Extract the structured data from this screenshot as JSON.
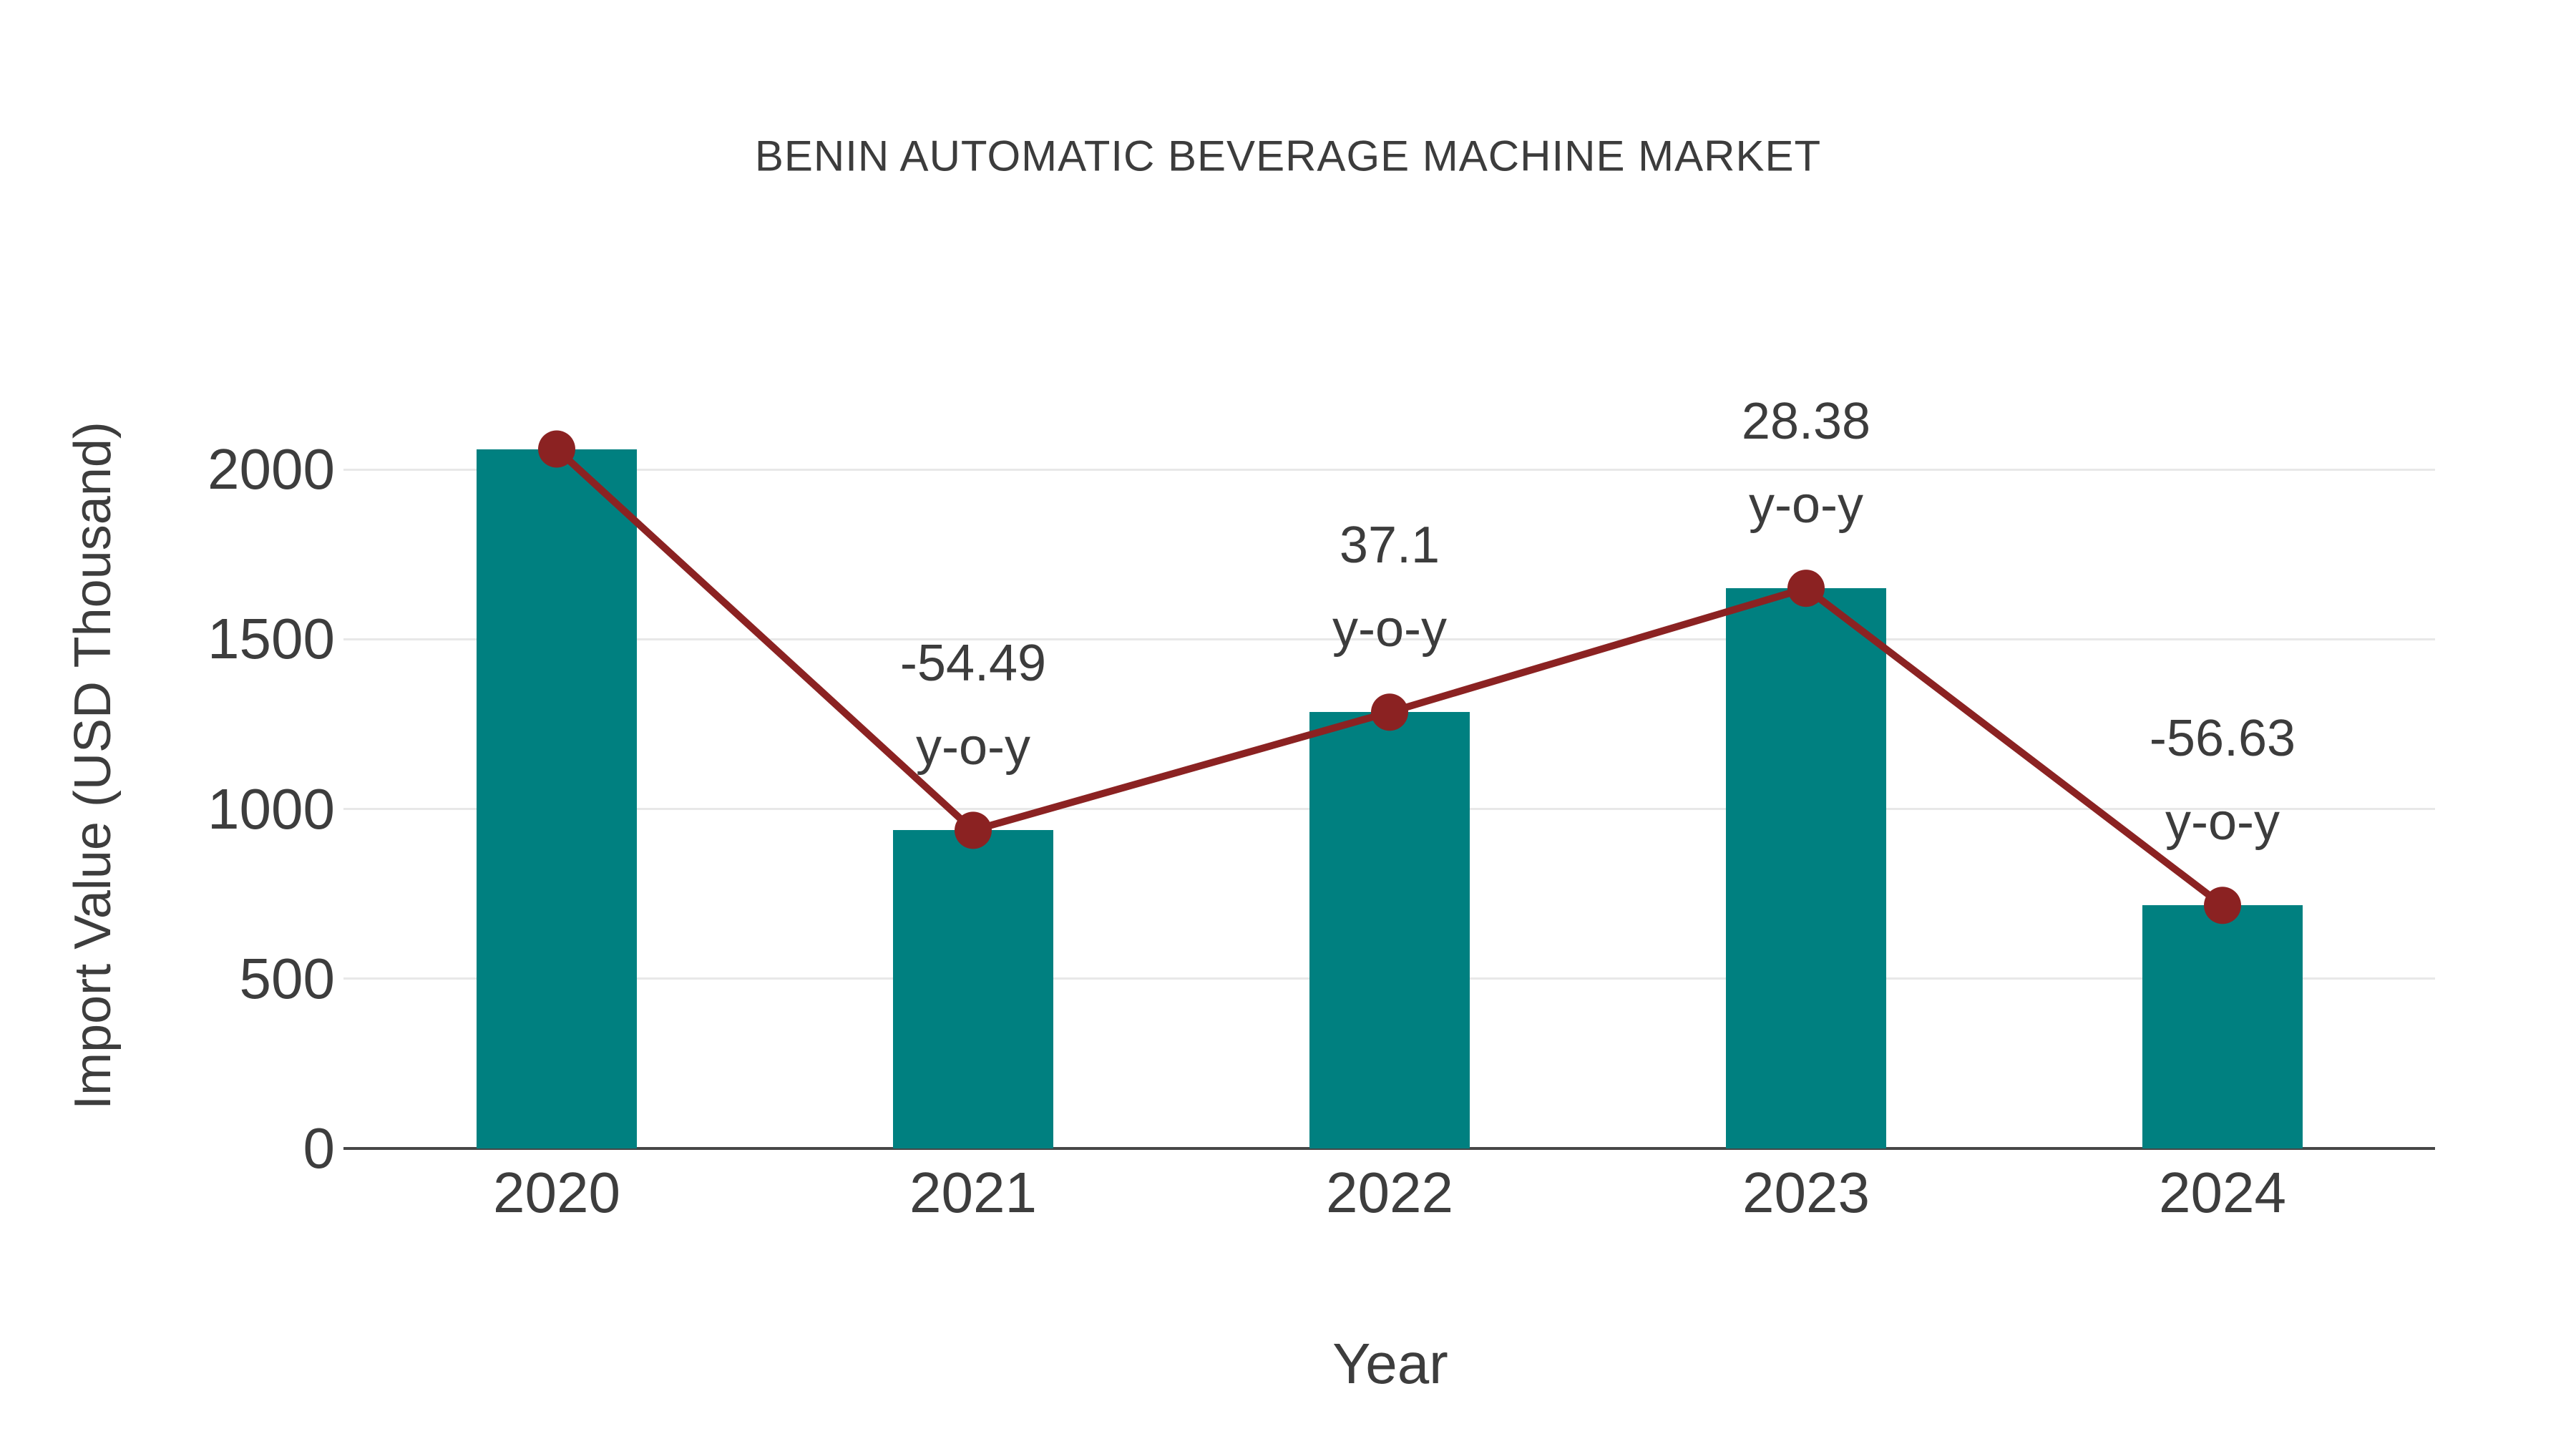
{
  "chart_data": {
    "type": "bar+line",
    "title": "BENIN AUTOMATIC BEVERAGE MACHINE MARKET",
    "xlabel": "Year",
    "ylabel": "Import Value (USD Thousand)",
    "categories": [
      "2020",
      "2021",
      "2022",
      "2023",
      "2024"
    ],
    "series": [
      {
        "name": "Import Value (USD Thousand)",
        "type": "bar",
        "color": "#008080",
        "values": [
          2060,
          937,
          1285,
          1650,
          716
        ]
      },
      {
        "name": "y-o-y change",
        "type": "line",
        "color": "#8B2222",
        "values": [
          2060,
          937,
          1285,
          1650,
          716
        ],
        "yoy_percent": [
          null,
          -54.49,
          37.1,
          28.38,
          -56.63
        ]
      }
    ],
    "annotations": [
      {
        "category": "2021",
        "line1": "-54.49",
        "line2": "y-o-y"
      },
      {
        "category": "2022",
        "line1": "37.1",
        "line2": "y-o-y"
      },
      {
        "category": "2023",
        "line1": "28.38",
        "line2": "y-o-y"
      },
      {
        "category": "2024",
        "line1": "-56.63",
        "line2": "y-o-y"
      }
    ],
    "yticks": [
      0,
      500,
      1000,
      1500,
      2000
    ],
    "ylim": [
      0,
      2200
    ],
    "grid": true,
    "legend": "none",
    "colors": {
      "bar": "#008080",
      "line": "#8B2222",
      "text": "#3C3C3C",
      "grid": "#E8E8E8",
      "axis": "#474747",
      "background": "#FFFFFF"
    }
  }
}
